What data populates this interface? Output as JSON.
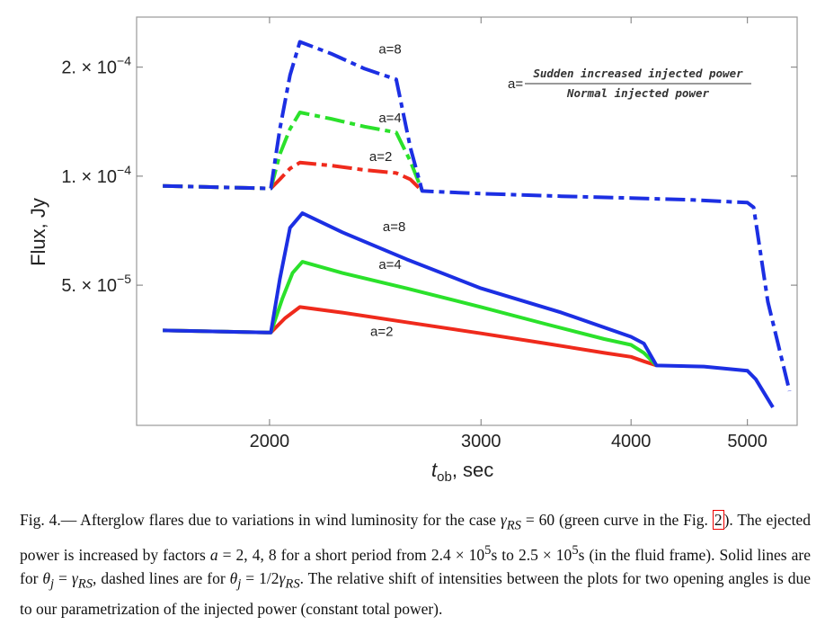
{
  "chart_data": {
    "type": "line",
    "xlabel_main": "t",
    "xlabel_sub": "ob",
    "xlabel_unit": ", sec",
    "ylabel": "Flux, Jy",
    "xscale": "log",
    "yscale": "log",
    "xlim": [
      1550,
      5500
    ],
    "ylim": [
      2.05e-05,
      0.000275
    ],
    "xticks": [
      {
        "value": 2000,
        "label": "2000"
      },
      {
        "value": 3000,
        "label": "3000"
      },
      {
        "value": 4000,
        "label": "4000"
      },
      {
        "value": 5000,
        "label": "5000"
      }
    ],
    "yticks": [
      {
        "value": 5e-05,
        "mant": "5. × 10",
        "exp": "−5"
      },
      {
        "value": 0.0001,
        "mant": "1. × 10",
        "exp": "−4"
      },
      {
        "value": 0.0002,
        "mant": "2. × 10",
        "exp": "−4"
      }
    ],
    "annotation": {
      "lhs": "a=",
      "numerator": "Sudden increased injected power",
      "denominator": "Normal injected power"
    },
    "series": [
      {
        "label": "a=2",
        "color": "#ef2a1c",
        "style": "dashed",
        "z": 1,
        "x": [
          1630,
          1990,
          2005,
          2040,
          2080,
          2120,
          2250,
          2400,
          2550,
          2620,
          2680
        ],
        "y": [
          9.4e-05,
          9.25e-05,
          9.25e-05,
          9.8e-05,
          0.000105,
          0.000109,
          0.000107,
          0.000104,
          0.000102,
          9.8e-05,
          9.1e-05
        ]
      },
      {
        "label": "a=4",
        "color": "#2be12b",
        "style": "dashed",
        "z": 2,
        "x": [
          1630,
          1990,
          2005,
          2040,
          2080,
          2120,
          2250,
          2400,
          2550,
          2620,
          2680
        ],
        "y": [
          9.4e-05,
          9.25e-05,
          9.25e-05,
          0.000115,
          0.000135,
          0.00015,
          0.000144,
          0.000137,
          0.000132,
          0.00011,
          9.1e-05
        ]
      },
      {
        "label": "a=8",
        "color": "#1c2fe3",
        "style": "dashed",
        "z": 3,
        "x": [
          1630,
          1990,
          2005,
          2040,
          2080,
          2120,
          2250,
          2400,
          2550,
          2620,
          2680,
          3000,
          3500,
          4000,
          4500,
          5000,
          5060,
          5200,
          5420
        ],
        "y": [
          9.4e-05,
          9.25e-05,
          9.25e-05,
          0.000135,
          0.00019,
          0.000235,
          0.000218,
          0.000198,
          0.000185,
          0.00012,
          9.1e-05,
          8.95e-05,
          8.8e-05,
          8.7e-05,
          8.6e-05,
          8.45e-05,
          8.2e-05,
          4.5e-05,
          2.55e-05
        ]
      },
      {
        "label": "a=2",
        "color": "#ef2a1c",
        "style": "solid",
        "z": 4,
        "x": [
          1630,
          1990,
          2005,
          2060,
          2120,
          2300,
          2600,
          3000,
          3400,
          3800,
          4000,
          4100,
          4200
        ],
        "y": [
          3.75e-05,
          3.7e-05,
          3.7e-05,
          4.05e-05,
          4.35e-05,
          4.2e-05,
          3.95e-05,
          3.68e-05,
          3.45e-05,
          3.25e-05,
          3.17e-05,
          3.08e-05,
          3e-05
        ]
      },
      {
        "label": "a=4",
        "color": "#2be12b",
        "style": "solid",
        "z": 5,
        "x": [
          1630,
          1990,
          2005,
          2050,
          2090,
          2130,
          2300,
          2600,
          3000,
          3400,
          3800,
          4000,
          4100,
          4200
        ],
        "y": [
          3.75e-05,
          3.7e-05,
          3.7e-05,
          4.6e-05,
          5.4e-05,
          5.8e-05,
          5.4e-05,
          4.9e-05,
          4.35e-05,
          3.9e-05,
          3.55e-05,
          3.42e-05,
          3.25e-05,
          3e-05
        ]
      },
      {
        "label": "a=8",
        "color": "#1c2fe3",
        "style": "solid",
        "z": 6,
        "x": [
          1630,
          1990,
          2005,
          2040,
          2080,
          2130,
          2300,
          2600,
          3000,
          3500,
          4000,
          4100,
          4200,
          4600,
          5000,
          5080,
          5250
        ],
        "y": [
          3.75e-05,
          3.7e-05,
          3.7e-05,
          5.2e-05,
          7.2e-05,
          7.9e-05,
          7e-05,
          5.9e-05,
          4.9e-05,
          4.2e-05,
          3.6e-05,
          3.45e-05,
          3e-05,
          2.98e-05,
          2.9e-05,
          2.75e-05,
          2.3e-05
        ]
      }
    ],
    "labels": [
      {
        "text": "a=8",
        "x": 2520,
        "y": 0.000218
      },
      {
        "text": "a=4",
        "x": 2520,
        "y": 0.000141
      },
      {
        "text": "a=2",
        "x": 2475,
        "y": 0.00011
      },
      {
        "text": "a=8",
        "x": 2540,
        "y": 7.05e-05
      },
      {
        "text": "a=4",
        "x": 2520,
        "y": 5.55e-05
      },
      {
        "text": "a=2",
        "x": 2480,
        "y": 3.62e-05
      }
    ]
  },
  "caption": {
    "html": "Fig. 4.— Afterglow flares due to variations in wind luminosity for the case <i>γ<sub>RS</sub></i> = 60 (green curve in the Fig. <span style=\"border:1px solid #e00;padding:0 1px\">2</span>). The ejected power is increased by factors <i>a</i> = 2, 4, 8 for a short period from 2.4 × 10<sup>5</sup>s to 2.5 × 10<sup>5</sup>s (in the fluid frame). Solid lines are for <i>θ<sub>j</sub></i> = <i>γ<sub>RS</sub></i>, dashed lines are for <i>θ<sub>j</sub></i> = 1/2<i>γ<sub>RS</sub></i>. The relative shift of intensities between the plots for two opening angles is due to our parametrization of the injected power (constant total power)."
  }
}
